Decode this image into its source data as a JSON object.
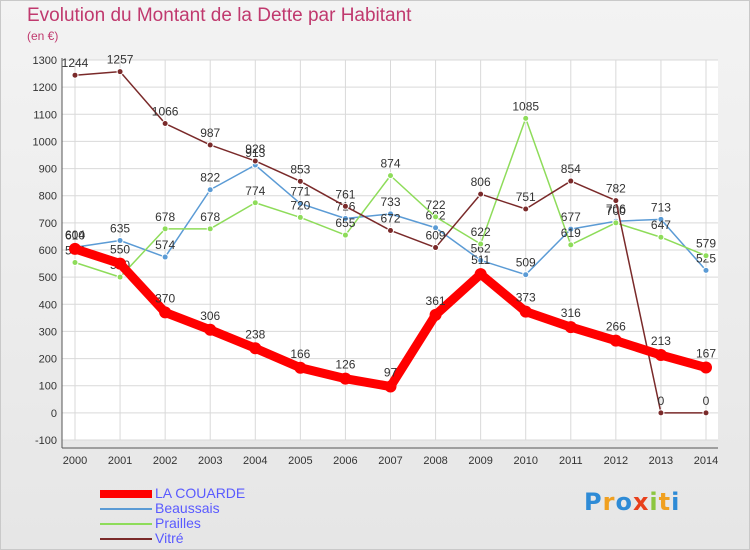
{
  "chart_data": {
    "type": "line",
    "title": "Evolution du Montant de la Dette par Habitant",
    "subtitle": "(en €)",
    "x": [
      "2000",
      "2001",
      "2002",
      "2003",
      "2004",
      "2005",
      "2006",
      "2007",
      "2008",
      "2009",
      "2010",
      "2011",
      "2012",
      "2013",
      "2014"
    ],
    "ylim": [
      -100,
      1300
    ],
    "yticks": [
      -100,
      0,
      100,
      200,
      300,
      400,
      500,
      600,
      700,
      800,
      900,
      1000,
      1100,
      1200,
      1300
    ],
    "grid": true,
    "legend_position": "bottom-left",
    "series": [
      {
        "name": "LA COUARDE",
        "color": "#ff0000",
        "values": [
          604,
          550,
          370,
          306,
          238,
          166,
          126,
          97,
          361,
          511,
          373,
          316,
          266,
          213,
          167
        ]
      },
      {
        "name": "Beaussais",
        "color": "#5b9bd5",
        "values": [
          610,
          635,
          574,
          822,
          913,
          771,
          716,
          733,
          682,
          562,
          509,
          677,
          706,
          713,
          525
        ]
      },
      {
        "name": "Prailles",
        "color": "#8edc5a",
        "values": [
          554,
          500,
          678,
          678,
          774,
          720,
          655,
          874,
          722,
          622,
          1085,
          619,
          700,
          647,
          579
        ]
      },
      {
        "name": "Vitré",
        "color": "#7a2a2a",
        "values": [
          1244,
          1257,
          1066,
          987,
          928,
          853,
          761,
          672,
          609,
          806,
          751,
          854,
          782,
          0,
          0
        ]
      }
    ]
  },
  "logo": {
    "letters": [
      "P",
      "r",
      "o",
      "x",
      "i",
      "t",
      "i"
    ],
    "colors": [
      "#2e8bd6",
      "#f0a020",
      "#2e8bd6",
      "#e8401c",
      "#8cc63f",
      "#f0a020",
      "#2e8bd6"
    ]
  }
}
